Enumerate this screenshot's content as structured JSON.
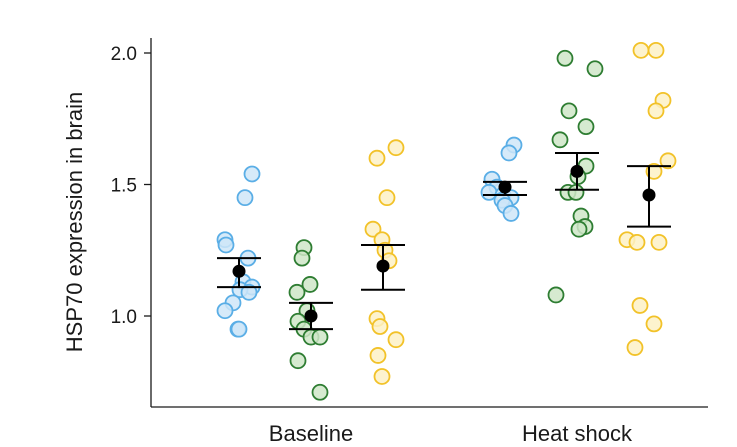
{
  "chart_data": {
    "type": "scatter",
    "ylabel": "HSP70 expression in brain",
    "xlabel": "",
    "categories": [
      "Baseline",
      "Heat shock"
    ],
    "ylim": [
      0.65,
      2.08
    ],
    "yticks": [
      1.0,
      1.5,
      2.0
    ],
    "ytick_labels": [
      "1.0",
      "1.5",
      "2.0"
    ],
    "grid": false,
    "legend": "none",
    "group_colors": [
      {
        "stroke": "#5aaee6",
        "fill": "#cfe6f8"
      },
      {
        "stroke": "#2e7d32",
        "fill": "#cfe6c8"
      },
      {
        "stroke": "#f2c229",
        "fill": "#fdf1c6"
      }
    ],
    "mean_color": "#000000",
    "groups": [
      {
        "category": "Baseline",
        "group": 1,
        "mean": 1.17,
        "err_low": 1.11,
        "err_high": 1.22,
        "points": [
          {
            "v": 1.54,
            "j": 0.13
          },
          {
            "v": 1.45,
            "j": 0.06
          },
          {
            "v": 1.29,
            "j": -0.14
          },
          {
            "v": 1.27,
            "j": -0.13
          },
          {
            "v": 1.22,
            "j": 0.09
          },
          {
            "v": 1.13,
            "j": 0.04
          },
          {
            "v": 1.11,
            "j": 0.13
          },
          {
            "v": 1.1,
            "j": 0.01
          },
          {
            "v": 1.09,
            "j": 0.1
          },
          {
            "v": 1.05,
            "j": -0.06
          },
          {
            "v": 1.02,
            "j": -0.14
          },
          {
            "v": 0.95,
            "j": -0.01
          },
          {
            "v": 0.95,
            "j": 0.0
          }
        ]
      },
      {
        "category": "Baseline",
        "group": 2,
        "mean": 1.0,
        "err_low": 0.95,
        "err_high": 1.05,
        "points": [
          {
            "v": 1.26,
            "j": -0.07
          },
          {
            "v": 1.22,
            "j": -0.09
          },
          {
            "v": 1.12,
            "j": -0.01
          },
          {
            "v": 1.09,
            "j": -0.14
          },
          {
            "v": 1.02,
            "j": -0.04
          },
          {
            "v": 0.98,
            "j": -0.13
          },
          {
            "v": 0.95,
            "j": -0.07
          },
          {
            "v": 0.92,
            "j": 0.0
          },
          {
            "v": 0.92,
            "j": 0.09
          },
          {
            "v": 0.83,
            "j": -0.13
          },
          {
            "v": 0.71,
            "j": 0.09
          }
        ]
      },
      {
        "category": "Baseline",
        "group": 3,
        "mean": 1.19,
        "err_low": 1.1,
        "err_high": 1.27,
        "points": [
          {
            "v": 1.64,
            "j": 0.13
          },
          {
            "v": 1.6,
            "j": -0.06
          },
          {
            "v": 1.45,
            "j": 0.04
          },
          {
            "v": 1.33,
            "j": -0.1
          },
          {
            "v": 1.29,
            "j": -0.01
          },
          {
            "v": 1.25,
            "j": 0.02
          },
          {
            "v": 1.21,
            "j": 0.06
          },
          {
            "v": 0.99,
            "j": -0.06
          },
          {
            "v": 0.96,
            "j": -0.03
          },
          {
            "v": 0.91,
            "j": 0.13
          },
          {
            "v": 0.85,
            "j": -0.05
          },
          {
            "v": 0.77,
            "j": -0.01
          }
        ]
      },
      {
        "category": "Heat shock",
        "group": 1,
        "mean": 1.49,
        "err_low": 1.46,
        "err_high": 1.51,
        "points": [
          {
            "v": 1.65,
            "j": 0.09
          },
          {
            "v": 1.62,
            "j": 0.04
          },
          {
            "v": 1.52,
            "j": -0.13
          },
          {
            "v": 1.49,
            "j": -0.08
          },
          {
            "v": 1.47,
            "j": -0.16
          },
          {
            "v": 1.46,
            "j": -0.02
          },
          {
            "v": 1.45,
            "j": 0.06
          },
          {
            "v": 1.44,
            "j": -0.03
          },
          {
            "v": 1.42,
            "j": 0.0
          },
          {
            "v": 1.39,
            "j": 0.06
          }
        ]
      },
      {
        "category": "Heat shock",
        "group": 2,
        "mean": 1.55,
        "err_low": 1.48,
        "err_high": 1.62,
        "points": [
          {
            "v": 1.98,
            "j": -0.12
          },
          {
            "v": 1.94,
            "j": 0.18
          },
          {
            "v": 1.78,
            "j": -0.08
          },
          {
            "v": 1.72,
            "j": 0.09
          },
          {
            "v": 1.67,
            "j": -0.17
          },
          {
            "v": 1.57,
            "j": 0.09
          },
          {
            "v": 1.53,
            "j": 0.01
          },
          {
            "v": 1.47,
            "j": -0.09
          },
          {
            "v": 1.47,
            "j": -0.01
          },
          {
            "v": 1.38,
            "j": 0.04
          },
          {
            "v": 1.34,
            "j": 0.08
          },
          {
            "v": 1.33,
            "j": 0.02
          },
          {
            "v": 1.08,
            "j": -0.21
          }
        ]
      },
      {
        "category": "Heat shock",
        "group": 3,
        "mean": 1.46,
        "err_low": 1.34,
        "err_high": 1.57,
        "points": [
          {
            "v": 2.01,
            "j": -0.08
          },
          {
            "v": 2.01,
            "j": 0.07
          },
          {
            "v": 1.82,
            "j": 0.14
          },
          {
            "v": 1.78,
            "j": 0.07
          },
          {
            "v": 1.59,
            "j": 0.19
          },
          {
            "v": 1.55,
            "j": 0.05
          },
          {
            "v": 1.29,
            "j": -0.22
          },
          {
            "v": 1.28,
            "j": -0.12
          },
          {
            "v": 1.28,
            "j": 0.1
          },
          {
            "v": 1.04,
            "j": -0.09
          },
          {
            "v": 0.97,
            "j": 0.05
          },
          {
            "v": 0.88,
            "j": -0.14
          }
        ]
      }
    ]
  }
}
